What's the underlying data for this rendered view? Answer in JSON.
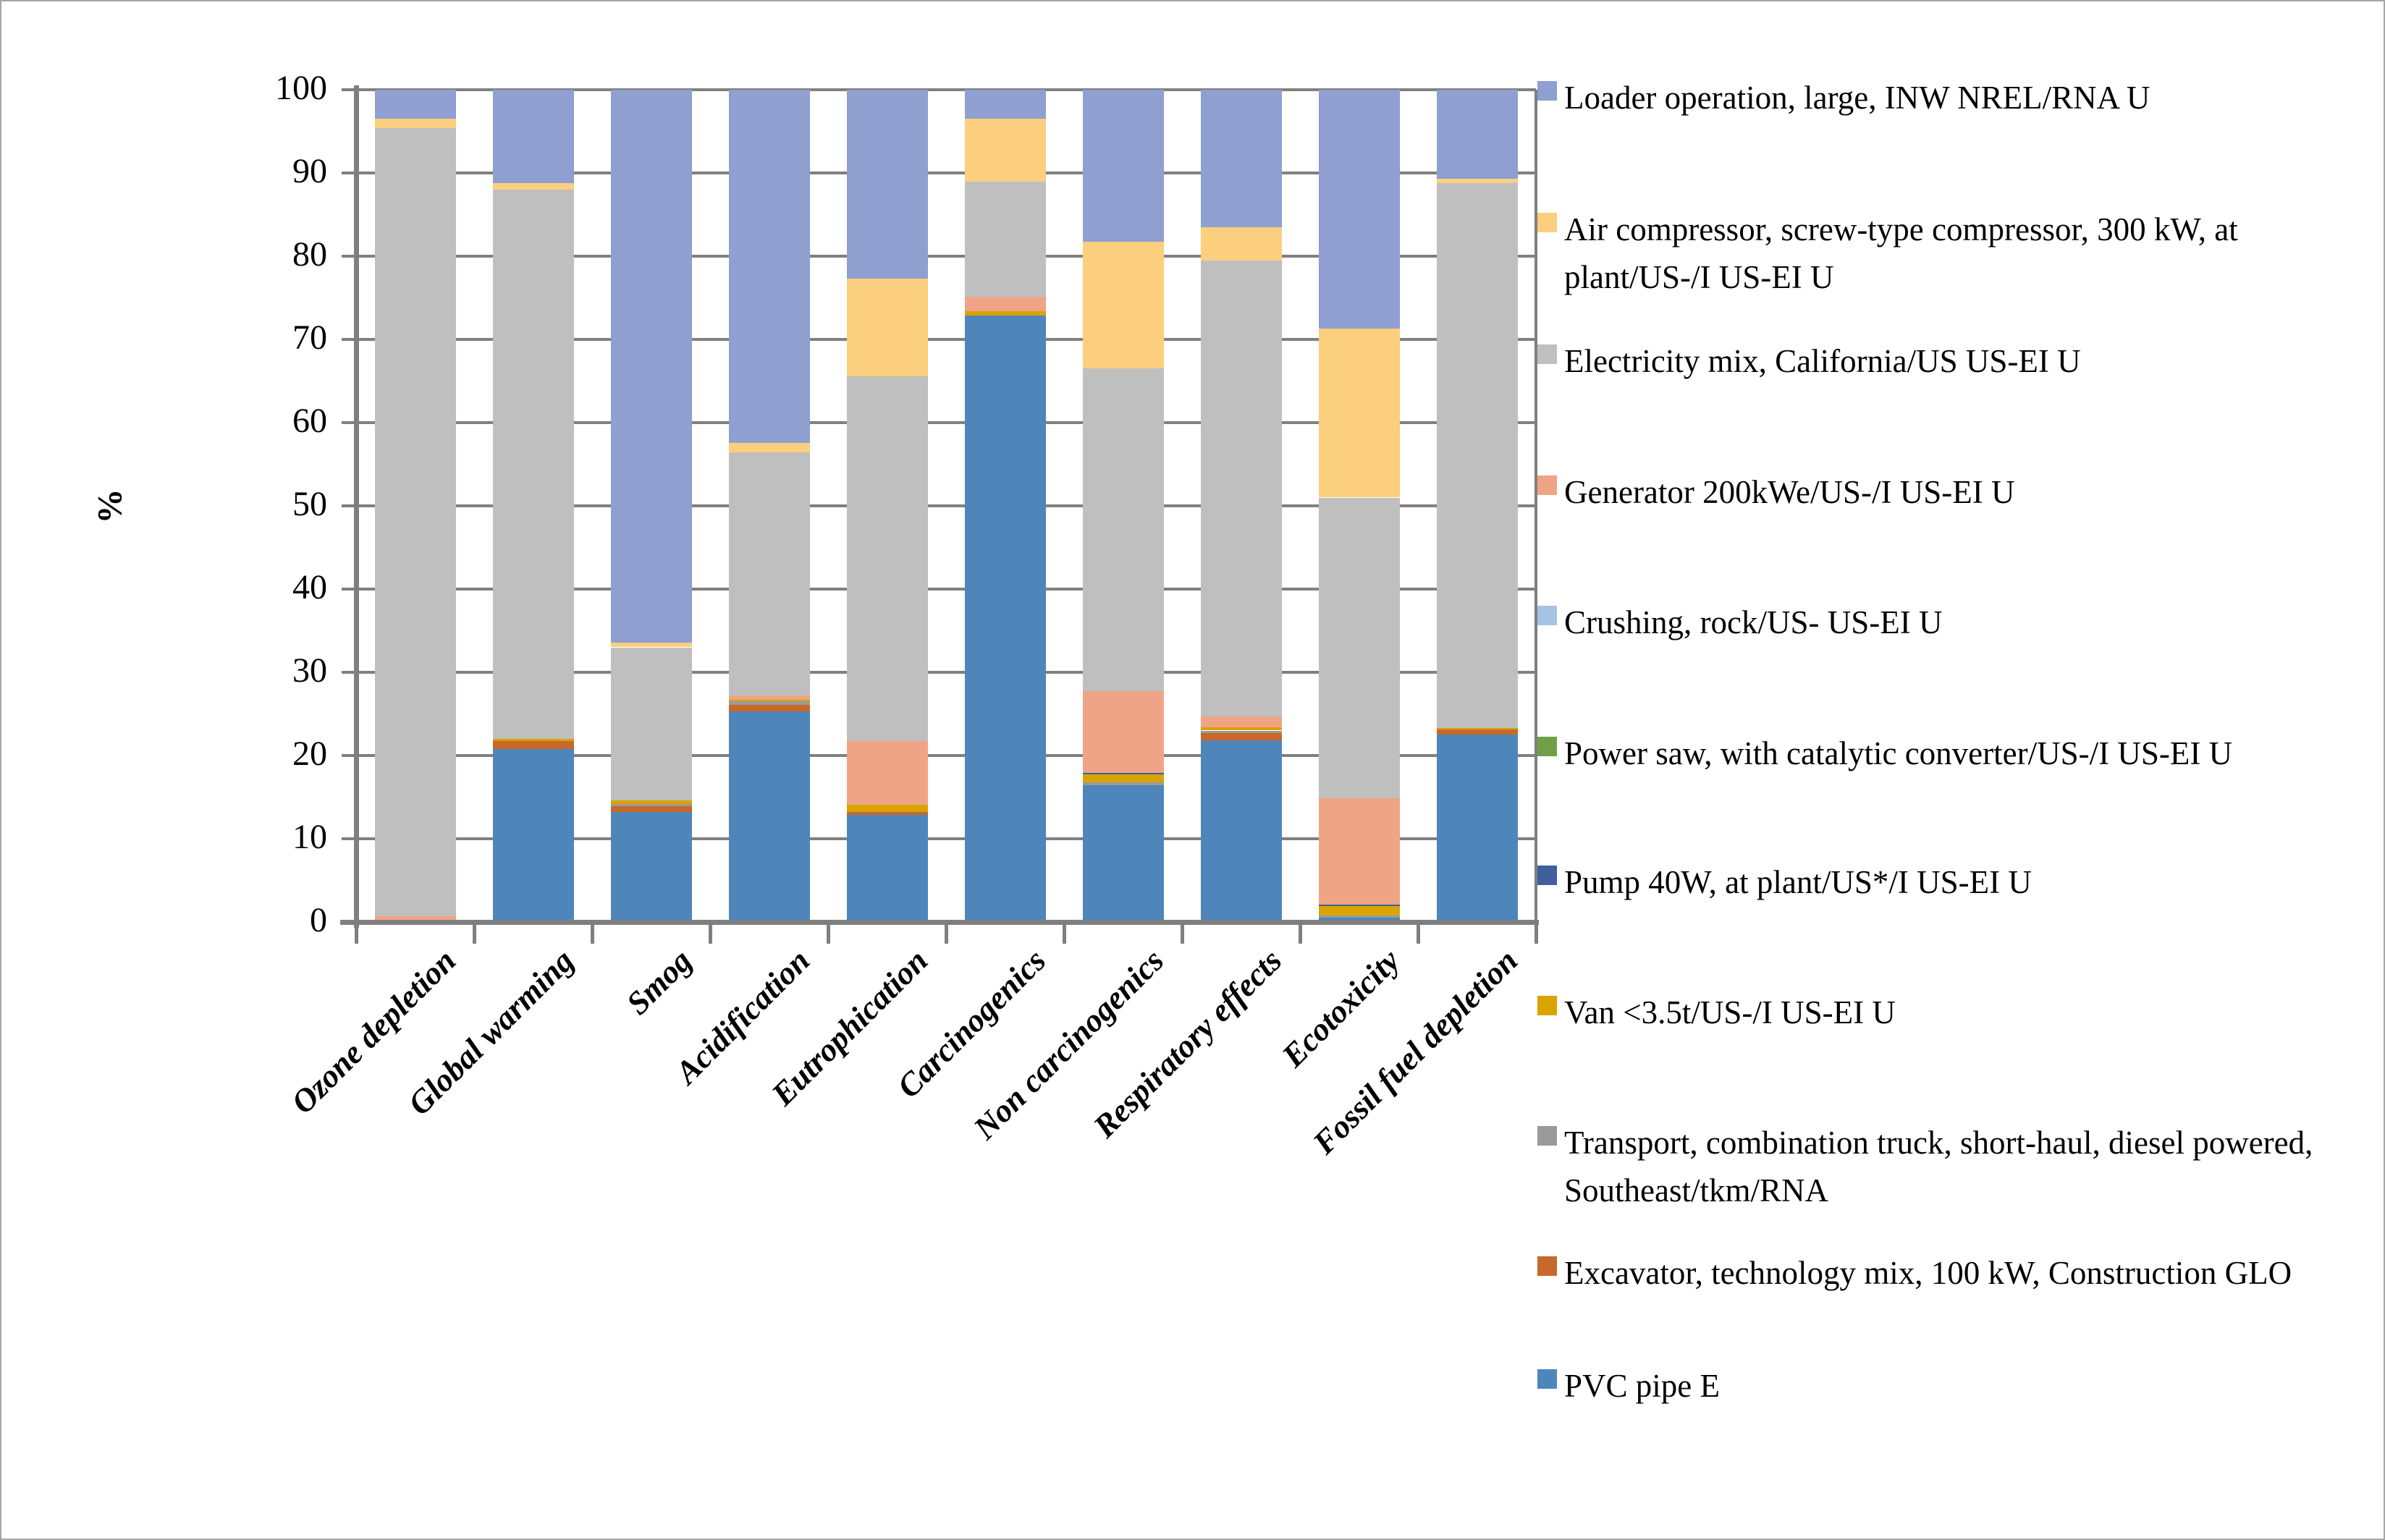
{
  "figure": {
    "background": "#ffffff",
    "border_color": "#a6a6a6"
  },
  "chart_data": {
    "type": "bar",
    "subtype": "stacked-100-percent",
    "title": "",
    "xlabel": "",
    "ylabel": "%",
    "ylim": [
      0,
      100
    ],
    "ytick_step": 10,
    "ytick_labels": [
      "0",
      "10",
      "20",
      "30",
      "40",
      "50",
      "60",
      "70",
      "80",
      "90",
      "100"
    ],
    "grid": true,
    "legend_position": "right",
    "categories": [
      "Ozone depletion",
      "Global warming",
      "Smog",
      "Acidification",
      "Eutrophication",
      "Carcinogenics",
      "Non carcinogenics",
      "Respiratory effects",
      "Ecotoxicity",
      "Fossil fuel depletion"
    ],
    "series": [
      {
        "name": "PVC pipe E",
        "color": "#4E86BB",
        "values": [
          0,
          20.8,
          13.2,
          25.3,
          12.9,
          72.9,
          16.4,
          21.8,
          0.5,
          22.5
        ]
      },
      {
        "name": "Excavator, technology mix, 100 kW, Construction GLO",
        "color": "#C8682A",
        "values": [
          0,
          0.9,
          0.7,
          0.8,
          0.3,
          0,
          0,
          0.9,
          0,
          0.6
        ]
      },
      {
        "name": "Transport, combination truck, short-haul, diesel powered, Southeast/tkm/RNA",
        "color": "#9A9A9A",
        "values": [
          0,
          0,
          0.3,
          0.4,
          0,
          0,
          0.4,
          0.3,
          0.3,
          0
        ]
      },
      {
        "name": "Van <3.5t/US-/I US-EI U",
        "color": "#D9A400",
        "values": [
          0,
          0.3,
          0.4,
          0.2,
          0.9,
          0.5,
          0.9,
          0.4,
          1.1,
          0.2
        ]
      },
      {
        "name": "Pump 40W, at plant/US*/I US-EI U",
        "color": "#3F5F9F",
        "values": [
          0,
          0,
          0,
          0,
          0,
          0,
          0.2,
          0,
          0.2,
          0
        ]
      },
      {
        "name": "Power saw, with catalytic converter/US-/I US-EI U",
        "color": "#6FA048",
        "values": [
          0,
          0,
          0,
          0,
          0,
          0,
          0,
          0,
          0,
          0
        ]
      },
      {
        "name": "Crushing, rock/US- US-EI U",
        "color": "#A6C3E4",
        "values": [
          0,
          0,
          0,
          0,
          0,
          0,
          0,
          0,
          0,
          0
        ]
      },
      {
        "name": "Generator 200kWe/US-/I US-EI U",
        "color": "#EFA585",
        "values": [
          0.7,
          0,
          0,
          0.5,
          7.6,
          1.7,
          9.8,
          1.3,
          12.8,
          0
        ]
      },
      {
        "name": "Electricity mix, California/US US-EI U",
        "color": "#BFBFBF",
        "values": [
          94.7,
          66.0,
          18.4,
          29.2,
          43.9,
          13.9,
          38.8,
          54.8,
          36.1,
          65.5
        ]
      },
      {
        "name": "Air compressor, screw-type compressor, 300 kW, at plant/US-/I US-EI U",
        "color": "#FBCF7D",
        "values": [
          1.1,
          0.8,
          0.6,
          1.2,
          11.7,
          7.5,
          15.2,
          4.0,
          20.3,
          0.5
        ]
      },
      {
        "name": "Loader operation, large, INW NREL/RNA U",
        "color": "#8E9FD0",
        "values": [
          3.5,
          11.2,
          66.4,
          42.4,
          22.7,
          3.5,
          18.3,
          16.5,
          28.7,
          10.7
        ]
      }
    ],
    "series_stacking": "first series at bottom of each bar, last series at top; legend listed top-to-bottom in reverse stacking order"
  }
}
